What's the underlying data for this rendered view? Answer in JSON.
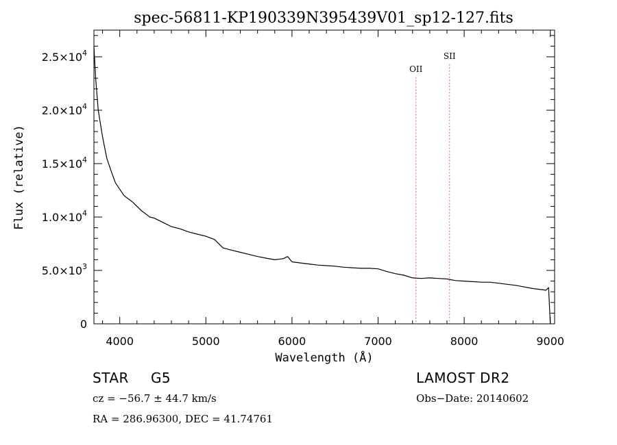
{
  "chart_data": {
    "type": "line",
    "title": "spec-56811-KP190339N395439V01_sp12-127.fits",
    "xlabel": "Wavelength (Å)",
    "ylabel": "Flux (relative)",
    "xlim": [
      3700,
      9050
    ],
    "ylim": [
      0,
      27500
    ],
    "xticks": [
      4000,
      5000,
      6000,
      7000,
      8000,
      9000
    ],
    "xtick_labels": [
      "4000",
      "5000",
      "6000",
      "7000",
      "8000",
      "9000"
    ],
    "yticks": [
      0,
      5000,
      10000,
      15000,
      20000,
      25000
    ],
    "ytick_labels": [
      {
        "mantissa": "0",
        "exp": ""
      },
      {
        "mantissa": "5.0×10",
        "exp": "3"
      },
      {
        "mantissa": "1.0×10",
        "exp": "4"
      },
      {
        "mantissa": "1.5×10",
        "exp": "4"
      },
      {
        "mantissa": "2.0×10",
        "exp": "4"
      },
      {
        "mantissa": "2.5×10",
        "exp": "4"
      }
    ],
    "series": [
      {
        "color": "#000000",
        "x": [
          3700,
          3720,
          3750,
          3800,
          3850,
          3900,
          3950,
          4000,
          4050,
          4100,
          4150,
          4200,
          4250,
          4300,
          4350,
          4400,
          4450,
          4500,
          4600,
          4700,
          4800,
          4900,
          5000,
          5100,
          5200,
          5300,
          5400,
          5500,
          5600,
          5700,
          5800,
          5900,
          5950,
          6000,
          6100,
          6200,
          6300,
          6400,
          6500,
          6600,
          6700,
          6800,
          6900,
          7000,
          7100,
          7200,
          7300,
          7400,
          7500,
          7600,
          7700,
          7800,
          7900,
          8000,
          8100,
          8200,
          8300,
          8400,
          8500,
          8600,
          8700,
          8800,
          8900,
          8950,
          8980,
          9000
        ],
        "y": [
          26000,
          23000,
          20000,
          17500,
          15500,
          14300,
          13200,
          12600,
          12000,
          11700,
          11400,
          11000,
          10600,
          10300,
          10000,
          9900,
          9700,
          9500,
          9100,
          8900,
          8600,
          8400,
          8200,
          7900,
          7100,
          6900,
          6700,
          6500,
          6300,
          6150,
          6000,
          6100,
          6300,
          5800,
          5700,
          5600,
          5500,
          5450,
          5400,
          5300,
          5250,
          5200,
          5200,
          5150,
          4900,
          4700,
          4550,
          4300,
          4250,
          4300,
          4250,
          4200,
          4050,
          4000,
          3950,
          3900,
          3900,
          3800,
          3700,
          3600,
          3450,
          3300,
          3200,
          3150,
          3400,
          0
        ]
      }
    ],
    "markers": [
      {
        "label": "OII",
        "x": 7440,
        "label_y": 23600
      },
      {
        "label": "SII",
        "x": 7830,
        "label_y": 24800
      }
    ],
    "marker_color": "#e0303a",
    "grid": false,
    "legend": "none"
  },
  "info": {
    "object_class": "STAR",
    "subclass": "G5",
    "survey": "LAMOST DR2",
    "redshift": "cz = −56.7 ± 44.7 km/s",
    "obs_date": "Obs−Date: 20140602",
    "coords": "RA = 286.96300, DEC =  41.74761"
  }
}
